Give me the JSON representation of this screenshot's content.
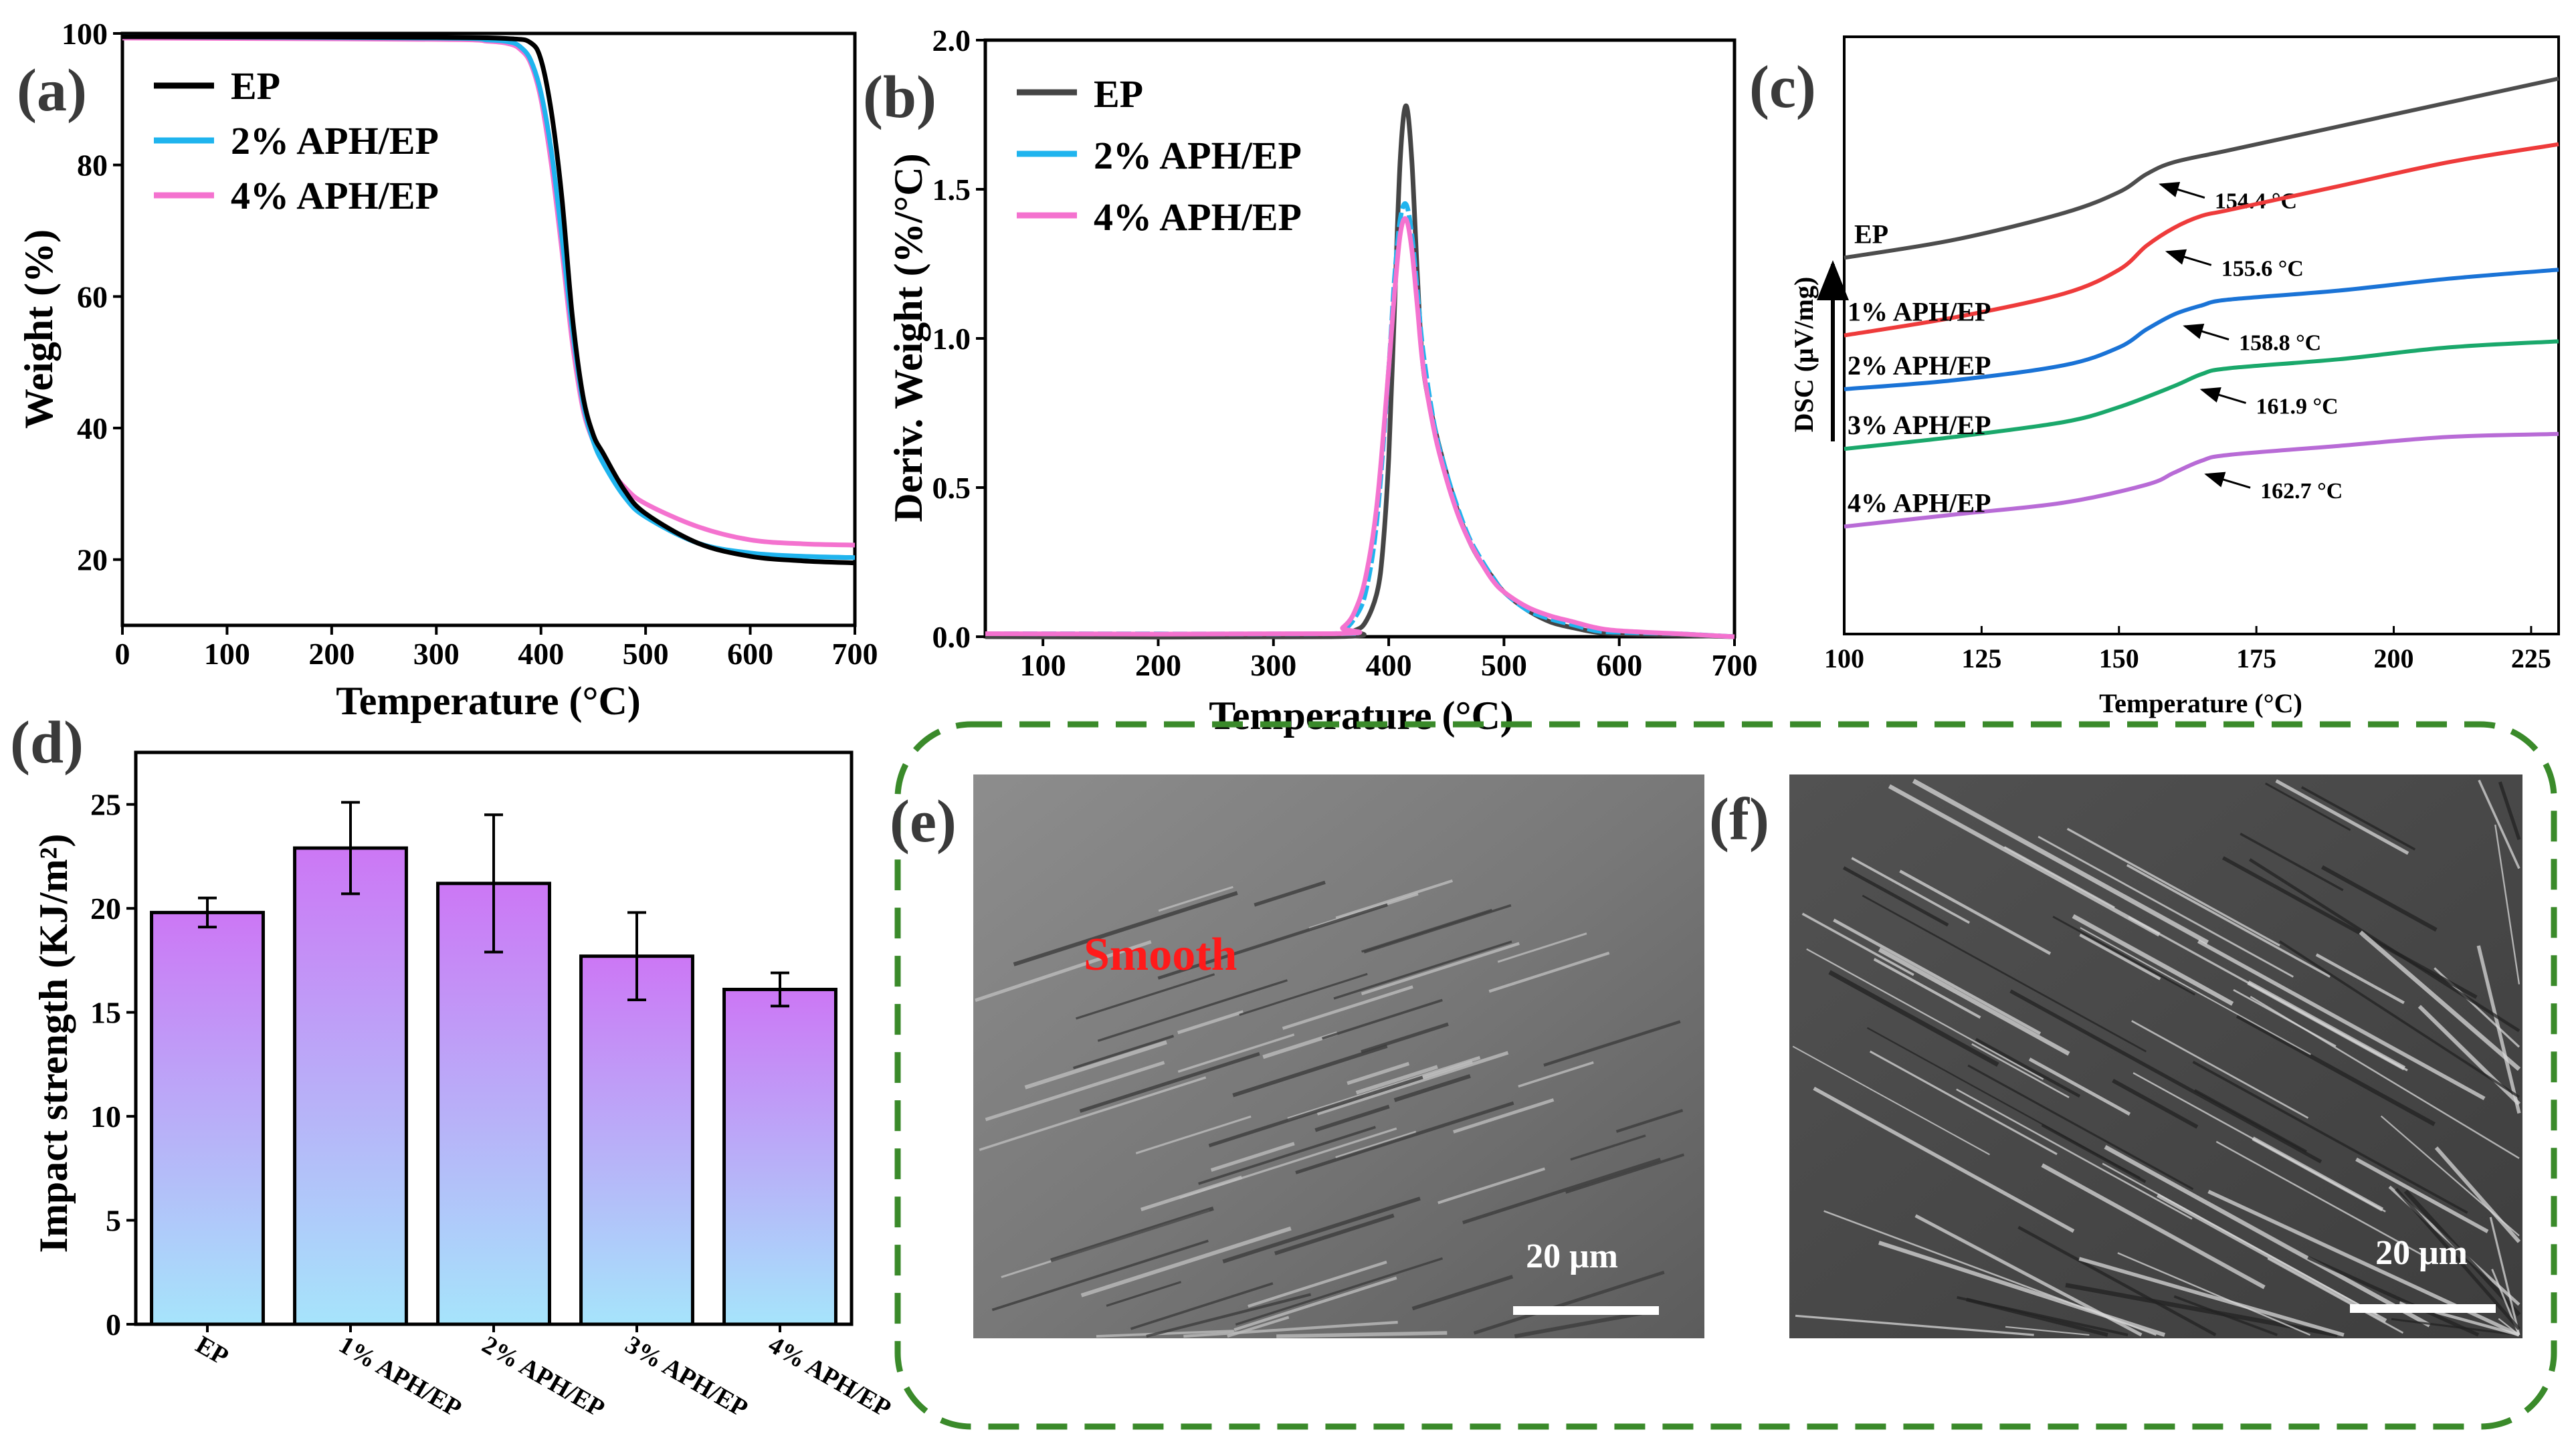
{
  "chart_data": [
    {
      "panel": "(a)",
      "type": "line",
      "xlabel": "Temperature (°C)",
      "ylabel": "Weight (%)",
      "xlim": [
        0,
        700
      ],
      "ylim": [
        10,
        100
      ],
      "xticks": [
        "0",
        "100",
        "200",
        "300",
        "400",
        "500",
        "600",
        "700"
      ],
      "yticks": [
        "20",
        "40",
        "60",
        "80",
        "100"
      ],
      "series": [
        {
          "name": "EP",
          "color": "#000000",
          "x": [
            0,
            300,
            370,
            390,
            400,
            410,
            420,
            430,
            440,
            450,
            460,
            480,
            500,
            550,
            600,
            650,
            700
          ],
          "y": [
            99.5,
            99.4,
            99.2,
            98.6,
            96,
            88,
            75,
            57,
            45,
            39,
            36,
            30.5,
            27,
            22.5,
            20.5,
            19.8,
            19.5
          ]
        },
        {
          "name": "2% APH/EP",
          "color": "#1fb4ee",
          "x": [
            0,
            300,
            350,
            370,
            380,
            390,
            400,
            410,
            420,
            430,
            440,
            450,
            460,
            480,
            500,
            550,
            600,
            650,
            700
          ],
          "y": [
            99.5,
            99.3,
            99,
            98.7,
            98,
            96,
            91,
            82,
            69,
            55,
            44,
            38,
            34.5,
            29.5,
            26.5,
            22.5,
            21,
            20.5,
            20.3
          ]
        },
        {
          "name": "4% APH/EP",
          "color": "#f472cf",
          "x": [
            0,
            300,
            350,
            370,
            380,
            390,
            400,
            410,
            420,
            430,
            440,
            450,
            460,
            480,
            500,
            550,
            600,
            650,
            700
          ],
          "y": [
            99.3,
            99.1,
            98.8,
            98.4,
            97.6,
            95.5,
            90,
            80,
            67,
            53,
            43,
            38,
            35,
            31,
            28.5,
            25,
            23,
            22.4,
            22.2
          ]
        }
      ],
      "legend": "top-left"
    },
    {
      "panel": "(b)",
      "type": "line",
      "xlabel": "Temperature (°C)",
      "ylabel": "Deriv. Weight (%/°C)",
      "xlim": [
        50,
        700
      ],
      "ylim": [
        0,
        2.0
      ],
      "xticks": [
        "100",
        "200",
        "300",
        "400",
        "500",
        "600",
        "700"
      ],
      "yticks": [
        "0.0",
        "0.5",
        "1.0",
        "1.5",
        "2.0"
      ],
      "series": [
        {
          "name": "EP",
          "color": "#454545",
          "x": [
            50,
            350,
            370,
            380,
            390,
            395,
            400,
            405,
            410,
            415,
            420,
            425,
            430,
            440,
            450,
            460,
            470,
            480,
            490,
            500,
            520,
            540,
            560,
            580,
            600,
            650,
            700
          ],
          "y": [
            0,
            0,
            0.02,
            0.05,
            0.15,
            0.3,
            0.6,
            1.1,
            1.6,
            1.78,
            1.6,
            1.2,
            0.9,
            0.7,
            0.55,
            0.42,
            0.32,
            0.25,
            0.2,
            0.15,
            0.09,
            0.05,
            0.03,
            0.015,
            0.01,
            0.005,
            0
          ]
        },
        {
          "name": "2% APH/EP",
          "color": "#1fb4ee",
          "x": [
            50,
            350,
            360,
            370,
            380,
            390,
            400,
            405,
            410,
            415,
            420,
            425,
            430,
            440,
            450,
            460,
            470,
            480,
            490,
            500,
            520,
            540,
            560,
            580,
            600,
            650,
            700
          ],
          "y": [
            0.01,
            0.01,
            0.02,
            0.06,
            0.15,
            0.4,
            0.9,
            1.2,
            1.4,
            1.45,
            1.35,
            1.15,
            0.95,
            0.7,
            0.55,
            0.43,
            0.33,
            0.26,
            0.2,
            0.15,
            0.09,
            0.06,
            0.04,
            0.02,
            0.015,
            0.01,
            0
          ]
        },
        {
          "name": "4% APH/EP",
          "color": "#f472cf",
          "x": [
            50,
            350,
            360,
            370,
            380,
            390,
            400,
            405,
            410,
            415,
            420,
            425,
            430,
            440,
            450,
            460,
            470,
            480,
            490,
            500,
            520,
            540,
            560,
            580,
            600,
            650,
            700
          ],
          "y": [
            0.01,
            0.01,
            0.03,
            0.08,
            0.2,
            0.45,
            0.9,
            1.15,
            1.35,
            1.4,
            1.3,
            1.1,
            0.9,
            0.68,
            0.53,
            0.41,
            0.32,
            0.25,
            0.19,
            0.15,
            0.1,
            0.07,
            0.05,
            0.03,
            0.02,
            0.01,
            0
          ]
        }
      ],
      "legend": "top-left"
    },
    {
      "panel": "(c)",
      "type": "line",
      "xlabel": "Temperature (°C)",
      "ylabel": "DSC (μV/mg)",
      "xlim": [
        100,
        230
      ],
      "ylim": [
        0,
        100
      ],
      "xticks": [
        "100",
        "125",
        "150",
        "175",
        "200",
        "225"
      ],
      "series": [
        {
          "name": "EP",
          "label": "EP",
          "color": "#4d4d4d",
          "tg": "154.4 °C",
          "x": [
            100,
            120,
            140,
            150,
            155,
            160,
            170,
            190,
            210,
            230
          ],
          "y": [
            63,
            66,
            70.5,
            74,
            77,
            79,
            81,
            85,
            89,
            93
          ]
        },
        {
          "name": "1% APH/EP",
          "label": "1% APH/EP",
          "color": "#ee3b3b",
          "tg": "155.6 °C",
          "x": [
            100,
            120,
            140,
            150,
            155,
            160,
            165,
            170,
            190,
            210,
            230
          ],
          "y": [
            50,
            53,
            57,
            61,
            65,
            68,
            70,
            71,
            75,
            79,
            82
          ]
        },
        {
          "name": "2% APH/EP",
          "label": "2% APH/EP",
          "color": "#1a73d6",
          "tg": "158.8 °C",
          "x": [
            100,
            120,
            140,
            150,
            155,
            160,
            165,
            170,
            190,
            210,
            230
          ],
          "y": [
            41,
            42.5,
            45,
            48,
            51,
            53.5,
            55,
            56,
            57.5,
            59.5,
            61
          ]
        },
        {
          "name": "3% APH/EP",
          "label": "3% APH/EP",
          "color": "#1aa86b",
          "tg": "161.9 °C",
          "x": [
            100,
            120,
            140,
            150,
            160,
            165,
            170,
            190,
            210,
            230
          ],
          "y": [
            31,
            33,
            35.5,
            38,
            41.5,
            43.5,
            44.5,
            46,
            48,
            49
          ]
        },
        {
          "name": "4% APH/EP",
          "label": "4% APH/EP",
          "color": "#b86bd6",
          "tg": "162.7 °C",
          "x": [
            100,
            120,
            140,
            155,
            160,
            165,
            170,
            190,
            210,
            230
          ],
          "y": [
            18,
            20,
            22,
            25,
            27,
            29,
            30,
            31.5,
            33,
            33.5
          ]
        }
      ],
      "arrow_label": "↑"
    },
    {
      "panel": "(d)",
      "type": "bar",
      "ylabel": "Impact strength (KJ/m²)",
      "ylim": [
        0,
        27.5
      ],
      "yticks": [
        "0",
        "5",
        "10",
        "15",
        "20",
        "25"
      ],
      "categories": [
        "EP",
        "1% APH/EP",
        "2% APH/EP",
        "3% APH/EP",
        "4% APH/EP"
      ],
      "values": [
        19.8,
        22.9,
        21.2,
        17.7,
        16.1
      ],
      "errors": [
        0.7,
        2.2,
        3.3,
        2.1,
        0.8
      ],
      "colors": {
        "top": "#cc77f5",
        "bottom": "#a6e4fb"
      }
    }
  ],
  "images": {
    "e": {
      "panel": "(e)",
      "scale": "20 μm",
      "annotation": "Smooth"
    },
    "f": {
      "panel": "(f)",
      "scale": "20 μm"
    }
  },
  "colors": {
    "dashed_box": "#3a8a2a",
    "annotation_red": "#ff1a1a"
  }
}
